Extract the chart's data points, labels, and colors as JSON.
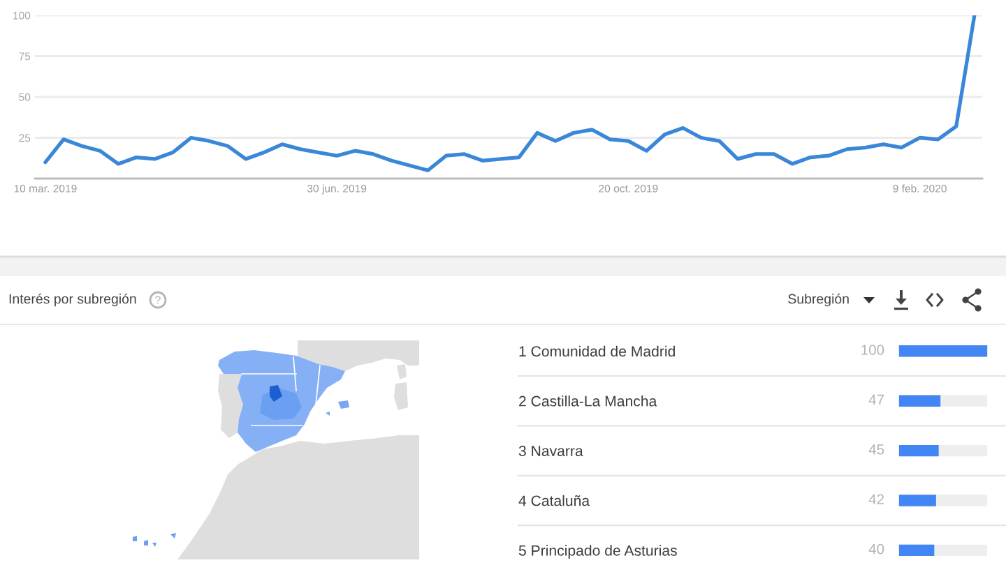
{
  "chart_data": [
    {
      "type": "line",
      "x": [
        "2019-03-10",
        "2019-03-17",
        "2019-03-24",
        "2019-03-31",
        "2019-04-07",
        "2019-04-14",
        "2019-04-21",
        "2019-04-28",
        "2019-05-05",
        "2019-05-12",
        "2019-05-19",
        "2019-05-26",
        "2019-06-02",
        "2019-06-09",
        "2019-06-16",
        "2019-06-23",
        "2019-06-30",
        "2019-07-07",
        "2019-07-14",
        "2019-07-21",
        "2019-07-28",
        "2019-08-04",
        "2019-08-11",
        "2019-08-18",
        "2019-08-25",
        "2019-09-01",
        "2019-09-08",
        "2019-09-15",
        "2019-09-22",
        "2019-09-29",
        "2019-10-06",
        "2019-10-13",
        "2019-10-20",
        "2019-10-27",
        "2019-11-03",
        "2019-11-10",
        "2019-11-17",
        "2019-11-24",
        "2019-12-01",
        "2019-12-08",
        "2019-12-15",
        "2019-12-22",
        "2019-12-29",
        "2020-01-05",
        "2020-01-12",
        "2020-01-19",
        "2020-01-26",
        "2020-02-02",
        "2020-02-09",
        "2020-02-16",
        "2020-02-23",
        "2020-03-01"
      ],
      "values": [
        10,
        24,
        20,
        17,
        9,
        13,
        12,
        16,
        25,
        23,
        20,
        12,
        16,
        21,
        18,
        16,
        14,
        17,
        15,
        11,
        8,
        5,
        14,
        15,
        11,
        12,
        13,
        28,
        23,
        28,
        30,
        24,
        23,
        17,
        27,
        31,
        25,
        23,
        12,
        15,
        15,
        9,
        13,
        14,
        18,
        19,
        21,
        19,
        25,
        24,
        32,
        100
      ],
      "color": "#3a87d8",
      "xlim": [
        "2019-03-06",
        "2020-03-04"
      ],
      "xticks": [
        {
          "value": "2019-03-10",
          "label": "10 mar. 2019"
        },
        {
          "value": "2019-06-30",
          "label": "30 jun. 2019"
        },
        {
          "value": "2019-10-20",
          "label": "20 oct. 2019"
        },
        {
          "value": "2020-02-09",
          "label": "9 feb. 2020"
        }
      ],
      "ylim": [
        0,
        100
      ],
      "yticks": [
        25,
        50,
        75,
        100
      ],
      "grid": "y"
    },
    {
      "type": "other",
      "title": "Interés por subregión"
    },
    {
      "type": "bar",
      "orientation": "horizontal",
      "categories": [
        "1 Comunidad de Madrid",
        "2 Castilla-La Mancha",
        "3 Navarra",
        "4 Cataluña",
        "5 Principado de Asturias"
      ],
      "values": [
        100,
        47,
        45,
        42,
        40
      ],
      "color": "#4285f4",
      "xlim": [
        0,
        100
      ],
      "tick_labels": "y",
      "data_labels": true,
      "annotations": [
        "Subregión"
      ]
    }
  ]
}
